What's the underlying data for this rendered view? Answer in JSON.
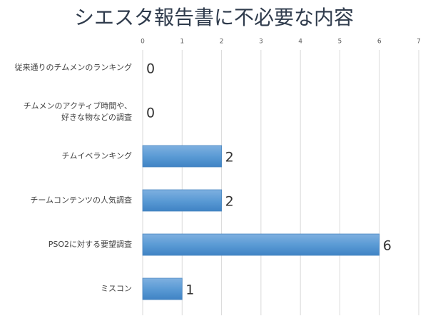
{
  "chart_data": {
    "type": "bar",
    "orientation": "horizontal",
    "title": "シエスタ報告書に不必要な内容",
    "categories": [
      "従来通りのチムメンのランキング",
      "チムメンのアクティブ時間や、\n好きな物などの調査",
      "チムイベランキング",
      "チームコンテンツの人気調査",
      "PSO2に対する要望調査",
      "ミスコン"
    ],
    "values": [
      0,
      0,
      2,
      2,
      6,
      1
    ],
    "color": "#5b9bd5",
    "xlim": [
      0,
      7
    ],
    "xticks": [
      0,
      1,
      2,
      3,
      4,
      5,
      6,
      7
    ],
    "grid": true
  }
}
